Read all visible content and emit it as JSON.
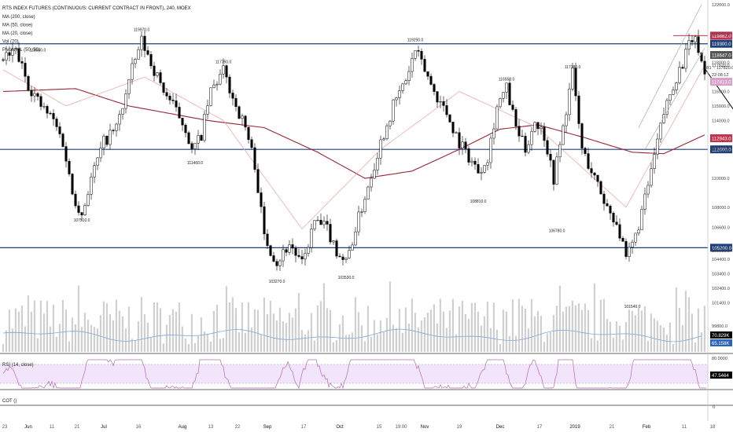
{
  "chart_data": {
    "type": "candlestick",
    "title": "RTS INDEX FUTURES (CONTINUOUS: CURRENT CONTRACT IN FRONT), 240, MOEX",
    "indicators": [
      "MA (200, close)",
      "MA (50, close)",
      "MA (20, close)",
      "Vol (20)",
      "Pivots HL (50, 50)"
    ],
    "ylim": [
      98000,
      122000
    ],
    "y_ticks": [
      "122000.0",
      "120000.0",
      "118000.0",
      "117820.0",
      "116000.0",
      "115000.0",
      "114000.0",
      "112000.0",
      "110000.0",
      "108000.0",
      "106600.0",
      "105000.0",
      "104400.0",
      "103400.0",
      "102400.0",
      "101400.0",
      "99800.0"
    ],
    "x_ticks": [
      "23",
      "Jun",
      "11",
      "21",
      "Jul",
      "16",
      "Aug",
      "13",
      "22",
      "Sep",
      "17",
      "Oct",
      "15",
      "19:00",
      "Nov",
      "19",
      "Dec",
      "17",
      "2019",
      "21",
      "Feb",
      "11",
      "18"
    ],
    "price_path": [
      [
        0,
        118200
      ],
      [
        4,
        118800
      ],
      [
        8,
        116500
      ],
      [
        12,
        115000
      ],
      [
        16,
        114000
      ],
      [
        19,
        112500
      ],
      [
        22,
        109000
      ],
      [
        25,
        107500
      ],
      [
        28,
        110000
      ],
      [
        32,
        112500
      ],
      [
        36,
        113500
      ],
      [
        38,
        115000
      ],
      [
        41,
        117500
      ],
      [
        44,
        119500
      ],
      [
        47,
        118000
      ],
      [
        50,
        116500
      ],
      [
        54,
        115000
      ],
      [
        58,
        113500
      ],
      [
        60,
        111800
      ],
      [
        63,
        113000
      ],
      [
        66,
        116000
      ],
      [
        70,
        117400
      ],
      [
        74,
        115000
      ],
      [
        77,
        113500
      ],
      [
        80,
        111000
      ],
      [
        83,
        106000
      ],
      [
        87,
        104200
      ],
      [
        91,
        105500
      ],
      [
        95,
        104000
      ],
      [
        99,
        107000
      ],
      [
        103,
        106500
      ],
      [
        106,
        105000
      ],
      [
        109,
        104200
      ],
      [
        112,
        106500
      ],
      [
        116,
        109500
      ],
      [
        120,
        112500
      ],
      [
        124,
        115000
      ],
      [
        128,
        116800
      ],
      [
        131,
        118800
      ],
      [
        134,
        117500
      ],
      [
        137,
        116000
      ],
      [
        141,
        114500
      ],
      [
        145,
        112500
      ],
      [
        148,
        111500
      ],
      [
        151,
        110500
      ],
      [
        154,
        111500
      ],
      [
        157,
        115000
      ],
      [
        160,
        116200
      ],
      [
        163,
        113500
      ],
      [
        166,
        112000
      ],
      [
        169,
        114000
      ],
      [
        172,
        113000
      ],
      [
        175,
        110000
      ],
      [
        178,
        113500
      ],
      [
        181,
        117300
      ],
      [
        184,
        112000
      ],
      [
        188,
        110000
      ],
      [
        192,
        108000
      ],
      [
        195,
        107000
      ],
      [
        198,
        104300
      ],
      [
        201,
        106000
      ],
      [
        204,
        108500
      ],
      [
        207,
        111500
      ],
      [
        210,
        114500
      ],
      [
        213,
        116500
      ],
      [
        216,
        118000
      ],
      [
        219,
        119700
      ],
      [
        221,
        119000
      ],
      [
        223,
        117200
      ]
    ],
    "ma200_path": [
      [
        0,
        116000
      ],
      [
        23,
        116200
      ],
      [
        40,
        115000
      ],
      [
        65,
        114000
      ],
      [
        83,
        113500
      ],
      [
        100,
        111800
      ],
      [
        115,
        110000
      ],
      [
        130,
        110500
      ],
      [
        145,
        112000
      ],
      [
        158,
        113400
      ],
      [
        170,
        113700
      ],
      [
        185,
        112800
      ],
      [
        200,
        111800
      ],
      [
        210,
        111700
      ],
      [
        223,
        113000
      ]
    ],
    "ma50_path": [
      [
        0,
        117500
      ],
      [
        20,
        115000
      ],
      [
        45,
        117000
      ],
      [
        70,
        114000
      ],
      [
        95,
        106500
      ],
      [
        120,
        112000
      ],
      [
        145,
        116000
      ],
      [
        170,
        113500
      ],
      [
        198,
        108000
      ],
      [
        223,
        117800
      ]
    ],
    "horizontal_levels": [
      {
        "value": 119300.0,
        "label": "119300.0",
        "color": "#1e3f7a"
      },
      {
        "value": 112000.0,
        "label": "112000.0",
        "color": "#1e3f7a"
      },
      {
        "value": 105200.0,
        "label": "105200.0",
        "color": "#1e3f7a"
      }
    ],
    "resistance_line": {
      "value": 119862.0,
      "label": "119862.0",
      "color": "#c4334e"
    },
    "price_labels": [
      {
        "label": "118647.0",
        "color": "#555555"
      },
      {
        "label": "117413.0",
        "color": "#d7a0c8"
      },
      {
        "label": "112943.0",
        "color": "#c4334e"
      }
    ],
    "pivots": [
      {
        "label": "118540.0",
        "i": 11,
        "value": 118540,
        "pos": "above"
      },
      {
        "label": "107510.0",
        "i": 25,
        "value": 107510,
        "pos": "below"
      },
      {
        "label": "119970.0",
        "i": 44,
        "value": 119970,
        "pos": "above"
      },
      {
        "label": "111460.0",
        "i": 61,
        "value": 111460,
        "pos": "below"
      },
      {
        "label": "117750.0",
        "i": 70,
        "value": 117750,
        "pos": "above"
      },
      {
        "label": "103270.0",
        "i": 87,
        "value": 103270,
        "pos": "below"
      },
      {
        "label": "103530.0",
        "i": 109,
        "value": 103530,
        "pos": "below"
      },
      {
        "label": "119250.0",
        "i": 131,
        "value": 119250,
        "pos": "above"
      },
      {
        "label": "108810.0",
        "i": 151,
        "value": 108810,
        "pos": "below"
      },
      {
        "label": "116550.0",
        "i": 160,
        "value": 116550,
        "pos": "above"
      },
      {
        "label": "117380.0",
        "i": 181,
        "value": 117380,
        "pos": "above"
      },
      {
        "label": "106780.0",
        "i": 176,
        "value": 106780,
        "pos": "below"
      },
      {
        "label": "101540.0",
        "i": 200,
        "value": 101540,
        "pos": "below"
      }
    ],
    "projection": [
      [
        223,
        117600
      ],
      [
        241,
        112000
      ],
      [
        253,
        114100
      ]
    ],
    "rsi": {
      "label": "RSI (14, close)",
      "value": "47.5464",
      "upper": 70,
      "lower": 30,
      "ticks": [
        "80.0000"
      ]
    },
    "volume": {
      "value": "70.829K",
      "ma_value": "65.158K"
    },
    "cot": {
      "label": "COT ()",
      "tick": "0"
    },
    "ri_label": "RI1 ~ 117820.0",
    "time_label": "22:08:12",
    "colors": {
      "level": "#1e3f7a",
      "ma200": "#9b2335",
      "ma50": "#e8a0a0",
      "candle": "#000000",
      "rsi_band": "#f2e4fa",
      "rsi_line": "#b36bb3",
      "volume": "#d0d0d0",
      "volume_ma": "#7fa8d6"
    }
  }
}
